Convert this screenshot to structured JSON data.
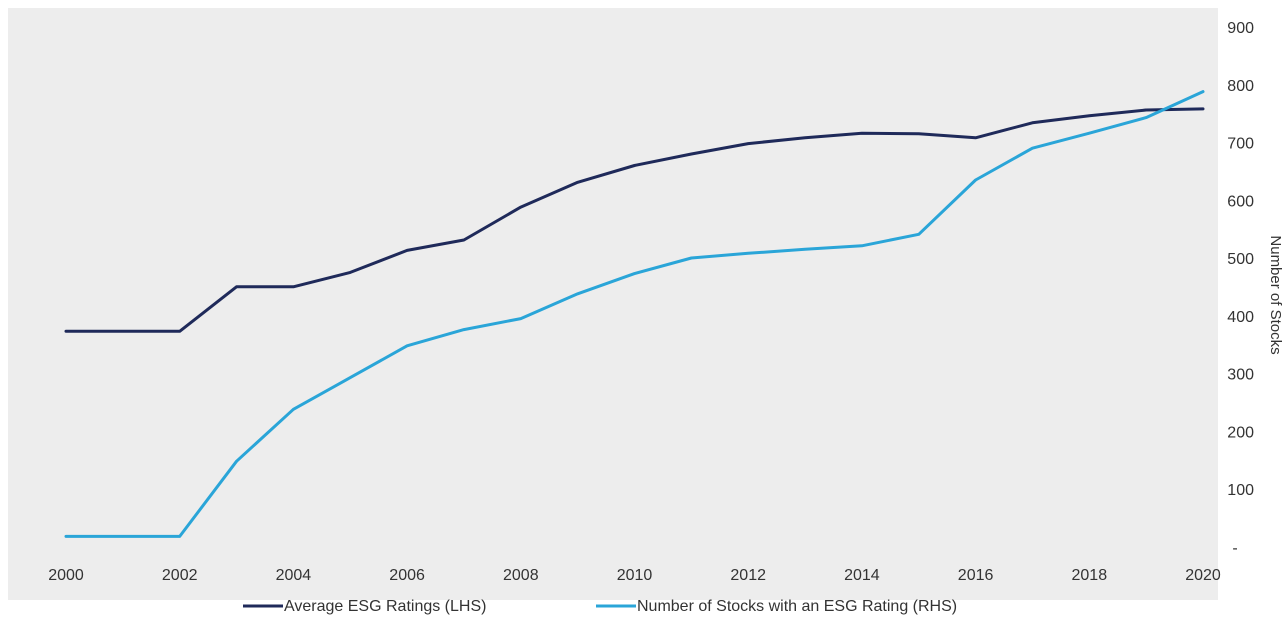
{
  "chart_data": {
    "type": "line",
    "title": "",
    "x": [
      2000,
      2001,
      2002,
      2003,
      2004,
      2005,
      2006,
      2007,
      2008,
      2009,
      2010,
      2011,
      2012,
      2013,
      2014,
      2015,
      2016,
      2017,
      2018,
      2019,
      2020
    ],
    "x_ticks": [
      "2000",
      "2002",
      "2004",
      "2006",
      "2008",
      "2010",
      "2012",
      "2014",
      "2016",
      "2018",
      "2020"
    ],
    "xlim": [
      2000,
      2020
    ],
    "y_right_ticks": [
      "-",
      "100",
      "200",
      "300",
      "400",
      "500",
      "600",
      "700",
      "800",
      "900"
    ],
    "y_right_label": "Number of Stocks",
    "ylim": [
      0,
      900
    ],
    "grid": false,
    "legend_position": "bottom-center",
    "series": [
      {
        "name": "Average ESG Ratings (LHS)",
        "color": "#1f2a5a",
        "values": [
          375,
          375,
          375,
          452,
          452,
          477,
          515,
          533,
          590,
          633,
          662,
          682,
          700,
          710,
          718,
          717,
          710,
          736,
          748,
          758,
          760
        ]
      },
      {
        "name": "Number of Stocks with an ESG Rating (RHS)",
        "color": "#2aa5d8",
        "values": [
          20,
          20,
          20,
          150,
          240,
          295,
          350,
          378,
          397,
          440,
          475,
          502,
          510,
          517,
          523,
          543,
          637,
          692,
          718,
          745,
          790
        ]
      }
    ]
  }
}
